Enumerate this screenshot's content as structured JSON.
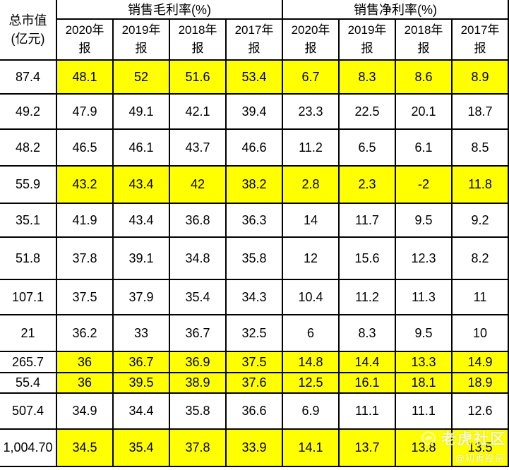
{
  "table": {
    "corner_header": {
      "line1": "总市值",
      "line2": "(亿元)"
    },
    "group_headers": [
      {
        "label": "销售毛利率(%)"
      },
      {
        "label": "销售净利率(%)"
      }
    ],
    "year_headers": [
      {
        "top": "2020年",
        "bottom": "报"
      },
      {
        "top": "2019年",
        "bottom": "报"
      },
      {
        "top": "2018年",
        "bottom": "报"
      },
      {
        "top": "2017年",
        "bottom": "报"
      }
    ],
    "rows": [
      {
        "market_cap": "87.4",
        "gross": [
          "48.1",
          "52",
          "51.6",
          "53.4"
        ],
        "net": [
          "6.7",
          "8.3",
          "8.6",
          "8.9"
        ],
        "highlight": true
      },
      {
        "market_cap": "49.2",
        "gross": [
          "47.9",
          "49.1",
          "42.1",
          "39.4"
        ],
        "net": [
          "23.3",
          "22.5",
          "20.1",
          "18.7"
        ],
        "highlight": false
      },
      {
        "market_cap": "48.2",
        "gross": [
          "46.5",
          "46.1",
          "43.7",
          "46.6"
        ],
        "net": [
          "11.2",
          "6.5",
          "6.1",
          "8.5"
        ],
        "highlight": false
      },
      {
        "market_cap": "55.9",
        "gross": [
          "43.2",
          "43.4",
          "42",
          "38.2"
        ],
        "net": [
          "2.8",
          "2.3",
          "-2",
          "11.8"
        ],
        "highlight": true
      },
      {
        "market_cap": "35.1",
        "gross": [
          "41.9",
          "43.4",
          "36.8",
          "36.3"
        ],
        "net": [
          "14",
          "11.7",
          "9.5",
          "9.2"
        ],
        "highlight": false
      },
      {
        "market_cap": "51.8",
        "gross": [
          "37.8",
          "39.1",
          "34.8",
          "35.8"
        ],
        "net": [
          "12",
          "15.6",
          "12.3",
          "8.2"
        ],
        "highlight": false
      },
      {
        "market_cap": "107.1",
        "gross": [
          "37.5",
          "37.9",
          "35.4",
          "34.3"
        ],
        "net": [
          "10.4",
          "11.2",
          "11.3",
          "11"
        ],
        "highlight": false
      },
      {
        "market_cap": "21",
        "gross": [
          "36.2",
          "33",
          "36.7",
          "32.5"
        ],
        "net": [
          "6",
          "8.3",
          "9.5",
          "10"
        ],
        "highlight": false
      },
      {
        "market_cap": "265.7",
        "gross": [
          "36",
          "36.7",
          "36.9",
          "37.5"
        ],
        "net": [
          "14.8",
          "14.4",
          "13.3",
          "14.9"
        ],
        "highlight": true
      },
      {
        "market_cap": "55.4",
        "gross": [
          "36",
          "39.5",
          "38.9",
          "37.6"
        ],
        "net": [
          "12.5",
          "16.1",
          "18.1",
          "18.9"
        ],
        "highlight": true
      },
      {
        "market_cap": "507.4",
        "gross": [
          "34.9",
          "34.4",
          "35.8",
          "36.6"
        ],
        "net": [
          "6.9",
          "11.1",
          "11.1",
          "12.6"
        ],
        "highlight": false
      },
      {
        "market_cap": "1,004.70",
        "gross": [
          "34.5",
          "35.4",
          "37.8",
          "33.9"
        ],
        "net": [
          "14.1",
          "13.7",
          "13.8",
          "13.5"
        ],
        "highlight": true
      }
    ]
  },
  "watermark": {
    "logo": "tiger-community-logo",
    "brand": "老虎社区",
    "handle": "@初善投资"
  },
  "colors": {
    "highlight": "#FFFF00",
    "border": "#000000",
    "text": "#000000",
    "watermark": "#FFFFFF"
  },
  "chart_data": {
    "type": "table",
    "title": "销售毛利率与销售净利率对比表",
    "column_groups": [
      "总市值(亿元)",
      "销售毛利率(%)",
      "销售净利率(%)"
    ],
    "columns": [
      "总市值(亿元)",
      "销售毛利率(%) 2020年报",
      "销售毛利率(%) 2019年报",
      "销售毛利率(%) 2018年报",
      "销售毛利率(%) 2017年报",
      "销售净利率(%) 2020年报",
      "销售净利率(%) 2019年报",
      "销售净利率(%) 2018年报",
      "销售净利率(%) 2017年报"
    ],
    "rows": [
      [
        87.4,
        48.1,
        52,
        51.6,
        53.4,
        6.7,
        8.3,
        8.6,
        8.9
      ],
      [
        49.2,
        47.9,
        49.1,
        42.1,
        39.4,
        23.3,
        22.5,
        20.1,
        18.7
      ],
      [
        48.2,
        46.5,
        46.1,
        43.7,
        46.6,
        11.2,
        6.5,
        6.1,
        8.5
      ],
      [
        55.9,
        43.2,
        43.4,
        42,
        38.2,
        2.8,
        2.3,
        -2,
        11.8
      ],
      [
        35.1,
        41.9,
        43.4,
        36.8,
        36.3,
        14,
        11.7,
        9.5,
        9.2
      ],
      [
        51.8,
        37.8,
        39.1,
        34.8,
        35.8,
        12,
        15.6,
        12.3,
        8.2
      ],
      [
        107.1,
        37.5,
        37.9,
        35.4,
        34.3,
        10.4,
        11.2,
        11.3,
        11
      ],
      [
        21,
        36.2,
        33,
        36.7,
        32.5,
        6,
        8.3,
        9.5,
        10
      ],
      [
        265.7,
        36,
        36.7,
        36.9,
        37.5,
        14.8,
        14.4,
        13.3,
        14.9
      ],
      [
        55.4,
        36,
        39.5,
        38.9,
        37.6,
        12.5,
        16.1,
        18.1,
        18.9
      ],
      [
        507.4,
        34.9,
        34.4,
        35.8,
        36.6,
        6.9,
        11.1,
        11.1,
        12.6
      ],
      [
        1004.7,
        34.5,
        35.4,
        37.8,
        33.9,
        14.1,
        13.7,
        13.8,
        13.5
      ]
    ],
    "highlighted_row_indices": [
      0,
      3,
      8,
      9,
      11
    ],
    "highlight_color": "#FFFF00",
    "grid": true
  }
}
